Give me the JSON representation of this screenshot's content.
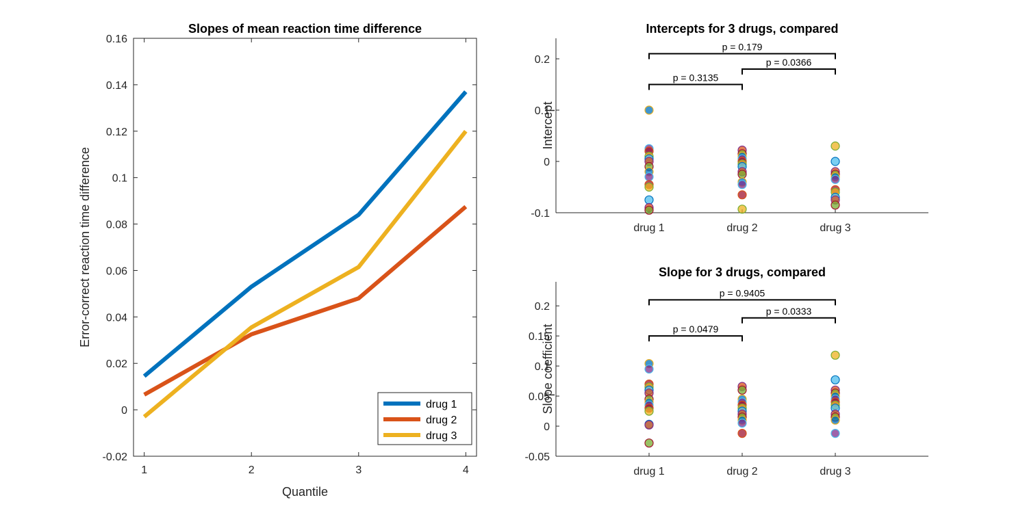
{
  "chart_data": [
    {
      "type": "line",
      "title": "Slopes of mean reaction time difference",
      "xlabel": "Quantile",
      "ylabel": "Error-correct reaction time difference",
      "x": [
        1,
        2,
        3,
        4
      ],
      "xlim": [
        0.9,
        4.1
      ],
      "ylim": [
        -0.02,
        0.16
      ],
      "xticks": [
        1,
        2,
        3,
        4
      ],
      "yticks": [
        -0.02,
        0,
        0.02,
        0.04,
        0.06,
        0.08,
        0.1,
        0.12,
        0.14,
        0.16
      ],
      "xtick_labels": [
        "1",
        "2",
        "3",
        "4"
      ],
      "ytick_labels": [
        "-0.02",
        "0",
        "0.02",
        "0.04",
        "0.06",
        "0.08",
        "0.1",
        "0.12",
        "0.14",
        "0.16"
      ],
      "legend_position": "bottom-right",
      "series": [
        {
          "name": "drug 1",
          "color": "#0072BD",
          "values": [
            0.0145,
            0.053,
            0.084,
            0.137
          ]
        },
        {
          "name": "drug 2",
          "color": "#D95319",
          "values": [
            0.0065,
            0.0325,
            0.048,
            0.0875
          ]
        },
        {
          "name": "drug 3",
          "color": "#EDB120",
          "values": [
            -0.003,
            0.0355,
            0.0615,
            0.12
          ]
        }
      ]
    },
    {
      "type": "scatter",
      "title": "Intercepts for 3 drugs, compared",
      "xlabel": "",
      "ylabel": "Intercept",
      "categories": [
        "drug 1",
        "drug 2",
        "drug 3"
      ],
      "xlim": [
        0,
        4
      ],
      "ylim": [
        -0.1,
        0.24
      ],
      "yticks": [
        -0.1,
        0,
        0.1,
        0.2
      ],
      "ytick_labels": [
        "-0.1",
        "0",
        "0.1",
        "0.2"
      ],
      "points": [
        [
          0.1,
          0.025,
          0.02,
          0.01,
          0.005,
          0,
          -0.01,
          -0.02,
          -0.03,
          -0.045,
          -0.05,
          -0.075,
          -0.09,
          -0.095
        ],
        [
          0.022,
          0.015,
          0.01,
          0.005,
          0,
          -0.005,
          -0.01,
          -0.02,
          -0.025,
          -0.04,
          -0.045,
          -0.065,
          -0.093
        ],
        [
          0.03,
          0,
          -0.02,
          -0.025,
          -0.03,
          -0.035,
          -0.055,
          -0.06,
          -0.07,
          -0.075,
          -0.085
        ]
      ],
      "comparisons": [
        {
          "from": 1,
          "to": 2,
          "label": "p = 0.3135",
          "y": 0.15
        },
        {
          "from": 2,
          "to": 3,
          "label": "p = 0.0366",
          "y": 0.18
        },
        {
          "from": 1,
          "to": 3,
          "label": "p = 0.179",
          "y": 0.21
        }
      ]
    },
    {
      "type": "scatter",
      "title": "Slope for 3 drugs, compared",
      "xlabel": "",
      "ylabel": "Slope coefficient",
      "categories": [
        "drug 1",
        "drug 2",
        "drug 3"
      ],
      "xlim": [
        0,
        4
      ],
      "ylim": [
        -0.05,
        0.24
      ],
      "yticks": [
        -0.05,
        0,
        0.05,
        0.1,
        0.15,
        0.2
      ],
      "ytick_labels": [
        "-0.05",
        "0",
        "0.05",
        "0.1",
        "0.15",
        "0.2"
      ],
      "points": [
        [
          0.104,
          0.095,
          0.07,
          0.065,
          0.06,
          0.055,
          0.045,
          0.04,
          0.035,
          0.03,
          0.025,
          0.003,
          0.002,
          -0.028
        ],
        [
          0.066,
          0.06,
          0.045,
          0.04,
          0.035,
          0.03,
          0.025,
          0.02,
          0.015,
          0.01,
          0.005,
          -0.012
        ],
        [
          0.118,
          0.077,
          0.06,
          0.055,
          0.05,
          0.045,
          0.04,
          0.035,
          0.03,
          0.02,
          0.015,
          0.01,
          -0.012
        ]
      ],
      "comparisons": [
        {
          "from": 1,
          "to": 2,
          "label": "p = 0.0479",
          "y": 0.15
        },
        {
          "from": 2,
          "to": 3,
          "label": "p = 0.0333",
          "y": 0.18
        },
        {
          "from": 1,
          "to": 3,
          "label": "p = 0.9405",
          "y": 0.21
        }
      ]
    }
  ],
  "marker_colors": [
    "#0072BD",
    "#D95319",
    "#EDB120",
    "#7E2F8E",
    "#77AC30",
    "#4DBEEE",
    "#A2142F"
  ]
}
